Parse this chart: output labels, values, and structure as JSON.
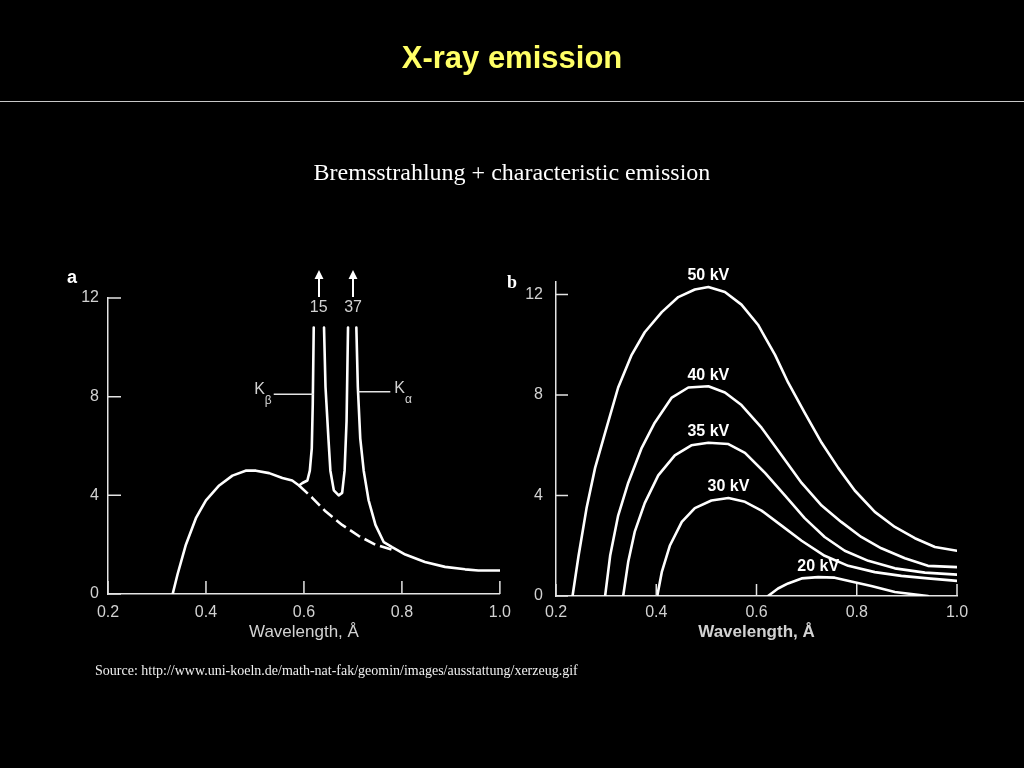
{
  "chart_data": [
    {
      "type": "line",
      "title": "X-ray emission",
      "subtitle": "Bremsstrahlung + characteristic emission",
      "xlabel": "Wavelength, Å",
      "annotations": [
        "a",
        {
          "text": "15",
          "x": 0.62,
          "y": 10.8
        },
        {
          "text": "37",
          "x": 0.69,
          "y": 10.8
        },
        {
          "text": "K$_{β}$",
          "x": 0.62,
          "y": 8.1
        },
        {
          "text": "K$_{α}$",
          "x": 0.711,
          "y": 8.2
        },
        "Source: http://www.uni-koeln.de/math-nat-fak/geomin/images/ausstattung/xerzeug.gif"
      ],
      "series": [
        {
          "color": "#ffffff",
          "x": [
            0.332,
            0.342,
            0.359,
            0.38,
            0.4,
            0.427,
            0.454,
            0.481,
            0.502,
            0.529,
            0.556,
            0.576,
            0.59,
            0.597,
            0.607,
            0.612,
            0.616,
            0.618,
            0.62,
            0.63,
            0.641,
            0.644,
            0.65,
            0.654,
            0.661,
            0.671,
            0.678,
            0.683,
            0.687,
            0.69,
            0.7,
            0.707,
            0.71,
            0.715,
            0.722,
            0.732,
            0.746,
            0.763,
            0.78,
            0.807,
            0.847,
            0.888,
            0.929,
            0.956,
            1.0
          ],
          "values": [
            0,
            0.8,
            2.0,
            3.1,
            3.8,
            4.4,
            4.8,
            5.0,
            5.0,
            4.9,
            4.7,
            4.6,
            4.4,
            4.5,
            4.6,
            5.0,
            5.9,
            7.7,
            10.8,
            null,
            10.8,
            8.4,
            6.3,
            5.0,
            4.2,
            4.0,
            4.1,
            5.0,
            7.0,
            10.8,
            null,
            10.8,
            8.4,
            6.3,
            5.0,
            3.8,
            2.8,
            2.1,
            1.9,
            1.6,
            1.3,
            1.1,
            1.0,
            0.95,
            0.95
          ]
        },
        {
          "color": "#ffffff",
          "line_style": "dashed",
          "x": [
            0.59,
            0.617,
            0.644,
            0.678,
            0.712,
            0.746,
            0.78
          ],
          "values": [
            4.4,
            3.9,
            3.35,
            2.8,
            2.35,
            2.0,
            1.8
          ]
        }
      ],
      "xlim": [
        0.2,
        1.0
      ],
      "xticks": [
        0.2,
        0.4,
        0.6,
        0.8,
        {
          "value": 1,
          "label": "1.0"
        }
      ],
      "ylim": [
        0,
        12
      ],
      "yticks": [
        0,
        4,
        8,
        12
      ],
      "marker": "none",
      "line_style": "solid",
      "legend": false,
      "grid": false
    },
    {
      "type": "line",
      "xlabel": "Wavelength, Å",
      "annotations": [
        "b"
      ],
      "series": [
        {
          "name": "50 kV",
          "color": "#ffffff",
          "x": [
            0.233,
            0.245,
            0.261,
            0.278,
            0.298,
            0.324,
            0.351,
            0.377,
            0.411,
            0.444,
            0.477,
            0.504,
            0.537,
            0.57,
            0.603,
            0.637,
            0.663,
            0.696,
            0.73,
            0.763,
            0.796,
            0.836,
            0.876,
            0.916,
            0.956,
            1.0
          ],
          "values": [
            0,
            1.6,
            3.5,
            5.1,
            6.5,
            8.3,
            9.6,
            10.5,
            11.3,
            11.9,
            12.2,
            12.3,
            12.1,
            11.6,
            10.8,
            9.6,
            8.5,
            7.3,
            6.1,
            5.1,
            4.2,
            3.35,
            2.75,
            2.3,
            1.95,
            1.8
          ]
        },
        {
          "name": "40 kV",
          "color": "#ffffff",
          "x": [
            0.298,
            0.308,
            0.324,
            0.344,
            0.371,
            0.397,
            0.431,
            0.464,
            0.504,
            0.537,
            0.57,
            0.61,
            0.65,
            0.69,
            0.73,
            0.769,
            0.809,
            0.849,
            0.896,
            0.942,
            1.0
          ],
          "values": [
            0,
            1.6,
            3.2,
            4.5,
            5.9,
            6.9,
            7.9,
            8.3,
            8.35,
            8.1,
            7.6,
            6.7,
            5.6,
            4.5,
            3.6,
            2.95,
            2.35,
            1.9,
            1.5,
            1.2,
            1.15
          ]
        },
        {
          "name": "35 kV",
          "color": "#ffffff",
          "x": [
            0.334,
            0.344,
            0.357,
            0.377,
            0.404,
            0.437,
            0.47,
            0.504,
            0.544,
            0.577,
            0.617,
            0.657,
            0.696,
            0.736,
            0.776,
            0.823,
            0.876,
            0.936,
            1.0
          ],
          "values": [
            0,
            1.35,
            2.55,
            3.7,
            4.8,
            5.6,
            6.0,
            6.1,
            6.05,
            5.7,
            4.9,
            4.0,
            3.1,
            2.35,
            1.8,
            1.4,
            1.1,
            0.93,
            0.85
          ]
        },
        {
          "name": "30 kV",
          "color": "#ffffff",
          "x": [
            0.402,
            0.411,
            0.427,
            0.451,
            0.477,
            0.51,
            0.544,
            0.577,
            0.61,
            0.65,
            0.69,
            0.736,
            0.783,
            0.836,
            0.889,
            0.942,
            1.0
          ],
          "values": [
            0,
            0.95,
            2.0,
            2.95,
            3.5,
            3.8,
            3.9,
            3.75,
            3.4,
            2.8,
            2.2,
            1.6,
            1.2,
            0.95,
            0.8,
            0.7,
            0.6
          ]
        },
        {
          "name": "20 kV",
          "color": "#ffffff",
          "x": [
            0.623,
            0.643,
            0.663,
            0.69,
            0.723,
            0.756,
            0.789,
            0.829,
            0.876,
            0.942
          ],
          "values": [
            0,
            0.3,
            0.5,
            0.7,
            0.75,
            0.73,
            0.58,
            0.4,
            0.16,
            0
          ]
        }
      ],
      "xlim": [
        0.2,
        1.0
      ],
      "xticks": [
        0.2,
        0.4,
        0.6,
        0.8,
        {
          "value": 1,
          "label": "1.0"
        }
      ],
      "ylim": [
        0,
        12.5
      ],
      "yticks": [
        0,
        4,
        8,
        12
      ],
      "marker": "none",
      "line_style": "solid",
      "legend": false,
      "grid": false
    }
  ]
}
